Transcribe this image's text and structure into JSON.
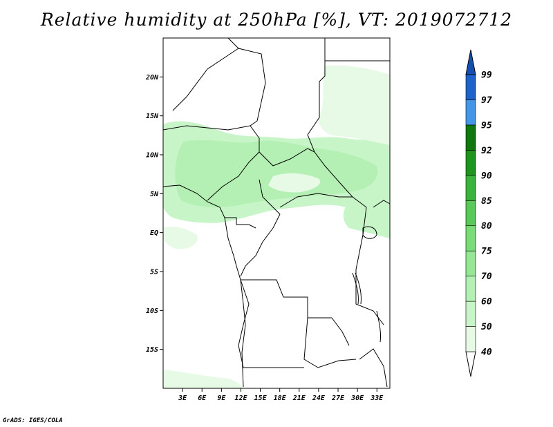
{
  "title": "Relative humidity at 250hPa [%], VT: 2019072712",
  "credit": "GrADS: IGES/COLA",
  "map": {
    "lat_ticks": [
      "20N",
      "15N",
      "10N",
      "5N",
      "EQ",
      "5S",
      "10S",
      "15S"
    ],
    "lon_ticks": [
      "3E",
      "6E",
      "9E",
      "12E",
      "15E",
      "18E",
      "21E",
      "24E",
      "27E",
      "30E",
      "33E"
    ],
    "extent": {
      "lon_min": 0,
      "lon_max": 35,
      "lat_min": -20,
      "lat_max": 25
    }
  },
  "colorbar": {
    "labels": [
      "40",
      "50",
      "60",
      "70",
      "75",
      "80",
      "85",
      "90",
      "92",
      "95",
      "97",
      "99"
    ],
    "colors": [
      "#ffffff",
      "#e6fae6",
      "#c8f5c8",
      "#b4f0b4",
      "#96e696",
      "#78dc78",
      "#5ac85a",
      "#3cb43c",
      "#1e961e",
      "#0f780f",
      "#4696e6",
      "#1e64c8",
      "#1450b4"
    ]
  }
}
